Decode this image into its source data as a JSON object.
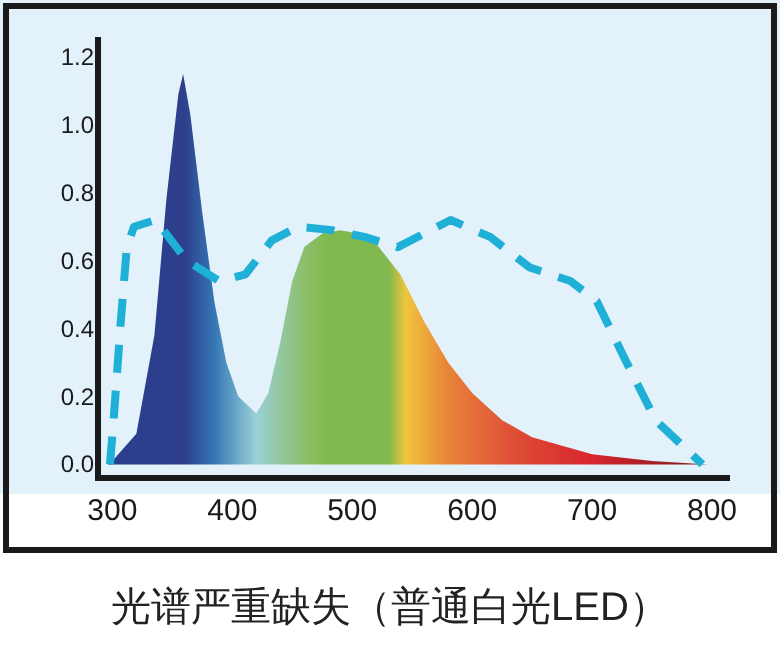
{
  "chart_data": {
    "type": "area",
    "title": "光谱严重缺失（普通白光LED）",
    "xlim": [
      288,
      815
    ],
    "ylim": [
      -0.04,
      1.25
    ],
    "xticks": [
      300,
      400,
      500,
      600,
      700,
      800
    ],
    "yticks": [
      {
        "value": 0,
        "label": "0.0"
      },
      0.2,
      0.4,
      0.6,
      0.8,
      {
        "value": 1,
        "label": "1.0"
      },
      1.2
    ],
    "grid": false,
    "series": [
      {
        "x": [
          296,
          300,
          320,
          335,
          345,
          355,
          359,
          365,
          375,
          385,
          395,
          405,
          420,
          430,
          440,
          450,
          460,
          475,
          490,
          505,
          520,
          540,
          560,
          580,
          600,
          625,
          650,
          700,
          750,
          797
        ],
        "values": [
          0,
          0.01,
          0.09,
          0.38,
          0.78,
          1.09,
          1.15,
          1.03,
          0.74,
          0.48,
          0.3,
          0.2,
          0.15,
          0.21,
          0.36,
          0.54,
          0.64,
          0.68,
          0.69,
          0.68,
          0.65,
          0.56,
          0.42,
          0.3,
          0.21,
          0.13,
          0.08,
          0.03,
          0.01,
          0
        ]
      },
      {
        "type": "line",
        "line_style": "dashed",
        "color": "#1fb0d8",
        "x": [
          298,
          301,
          307,
          312,
          318,
          336,
          362,
          389,
          411,
          433,
          455,
          483,
          510,
          538,
          560,
          582,
          615,
          648,
          682,
          704,
          726,
          753,
          792
        ],
        "values": [
          0,
          0.13,
          0.42,
          0.64,
          0.7,
          0.72,
          0.6,
          0.54,
          0.56,
          0.66,
          0.7,
          0.69,
          0.67,
          0.64,
          0.68,
          0.72,
          0.67,
          0.58,
          0.54,
          0.48,
          0.32,
          0.13,
          0
        ]
      }
    ]
  }
}
